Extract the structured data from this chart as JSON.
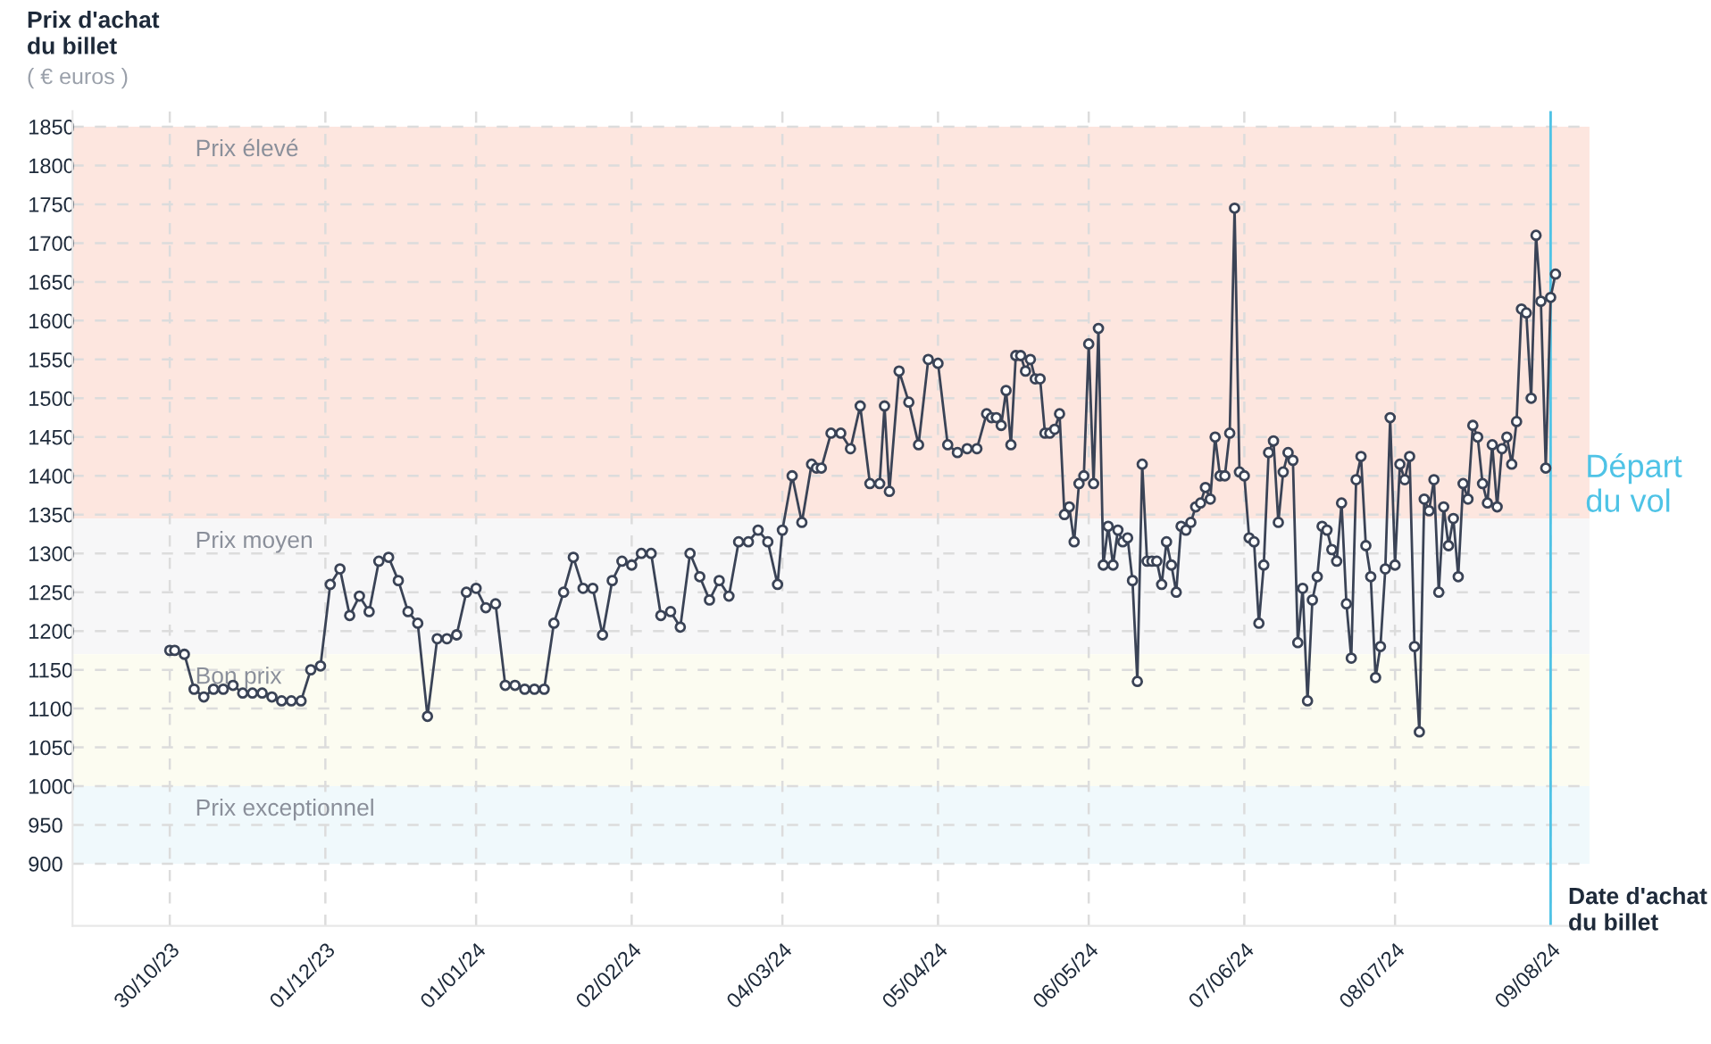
{
  "chart_data": {
    "type": "line",
    "ylabel": "Prix d'achat\ndu billet",
    "xlabel": "Date d'achat\ndu billet",
    "annotations": [
      "( € euros )"
    ],
    "x": [
      "2023-10-30",
      "2023-10-31",
      "2023-11-02",
      "2023-11-04",
      "2023-11-06",
      "2023-11-08",
      "2023-11-10",
      "2023-11-12",
      "2023-11-14",
      "2023-11-16",
      "2023-11-18",
      "2023-11-20",
      "2023-11-22",
      "2023-11-24",
      "2023-11-26",
      "2023-11-28",
      "2023-11-30",
      "2023-12-02",
      "2023-12-04",
      "2023-12-06",
      "2023-12-08",
      "2023-12-10",
      "2023-12-12",
      "2023-12-14",
      "2023-12-16",
      "2023-12-18",
      "2023-12-20",
      "2023-12-22",
      "2023-12-24",
      "2023-12-26",
      "2023-12-28",
      "2023-12-30",
      "2024-01-01",
      "2024-01-03",
      "2024-01-05",
      "2024-01-07",
      "2024-01-09",
      "2024-01-11",
      "2024-01-13",
      "2024-01-15",
      "2024-01-17",
      "2024-01-19",
      "2024-01-21",
      "2024-01-23",
      "2024-01-25",
      "2024-01-27",
      "2024-01-29",
      "2024-01-31",
      "2024-02-02",
      "2024-02-04",
      "2024-02-06",
      "2024-02-08",
      "2024-02-10",
      "2024-02-12",
      "2024-02-14",
      "2024-02-16",
      "2024-02-18",
      "2024-02-20",
      "2024-02-22",
      "2024-02-24",
      "2024-02-26",
      "2024-02-28",
      "2024-03-01",
      "2024-03-03",
      "2024-03-04",
      "2024-03-06",
      "2024-03-08",
      "2024-03-10",
      "2024-03-11",
      "2024-03-12",
      "2024-03-14",
      "2024-03-16",
      "2024-03-18",
      "2024-03-20",
      "2024-03-22",
      "2024-03-24",
      "2024-03-25",
      "2024-03-26",
      "2024-03-28",
      "2024-03-30",
      "2024-04-01",
      "2024-04-03",
      "2024-04-05",
      "2024-04-07",
      "2024-04-09",
      "2024-04-11",
      "2024-04-13",
      "2024-04-15",
      "2024-04-16",
      "2024-04-17",
      "2024-04-18",
      "2024-04-19",
      "2024-04-20",
      "2024-04-21",
      "2024-04-22",
      "2024-04-23",
      "2024-04-24",
      "2024-04-25",
      "2024-04-26",
      "2024-04-27",
      "2024-04-28",
      "2024-04-29",
      "2024-04-30",
      "2024-05-01",
      "2024-05-02",
      "2024-05-03",
      "2024-05-04",
      "2024-05-05",
      "2024-05-06",
      "2024-05-07",
      "2024-05-08",
      "2024-05-09",
      "2024-05-10",
      "2024-05-11",
      "2024-05-12",
      "2024-05-13",
      "2024-05-14",
      "2024-05-15",
      "2024-05-16",
      "2024-05-17",
      "2024-05-18",
      "2024-05-19",
      "2024-05-20",
      "2024-05-21",
      "2024-05-22",
      "2024-05-23",
      "2024-05-24",
      "2024-05-25",
      "2024-05-26",
      "2024-05-27",
      "2024-05-28",
      "2024-05-29",
      "2024-05-30",
      "2024-05-31",
      "2024-06-01",
      "2024-06-02",
      "2024-06-03",
      "2024-06-04",
      "2024-06-05",
      "2024-06-06",
      "2024-06-07",
      "2024-06-08",
      "2024-06-09",
      "2024-06-10",
      "2024-06-11",
      "2024-06-12",
      "2024-06-13",
      "2024-06-14",
      "2024-06-15",
      "2024-06-16",
      "2024-06-17",
      "2024-06-18",
      "2024-06-19",
      "2024-06-20",
      "2024-06-21",
      "2024-06-22",
      "2024-06-23",
      "2024-06-24",
      "2024-06-25",
      "2024-06-26",
      "2024-06-27",
      "2024-06-28",
      "2024-06-29",
      "2024-06-30",
      "2024-07-01",
      "2024-07-02",
      "2024-07-03",
      "2024-07-04",
      "2024-07-05",
      "2024-07-06",
      "2024-07-07",
      "2024-07-08",
      "2024-07-09",
      "2024-07-10",
      "2024-07-11",
      "2024-07-12",
      "2024-07-13",
      "2024-07-14",
      "2024-07-15",
      "2024-07-16",
      "2024-07-17",
      "2024-07-18",
      "2024-07-19",
      "2024-07-20",
      "2024-07-21",
      "2024-07-22",
      "2024-07-23",
      "2024-07-24",
      "2024-07-25",
      "2024-07-26",
      "2024-07-27",
      "2024-07-28",
      "2024-07-29",
      "2024-07-30",
      "2024-07-31",
      "2024-08-01",
      "2024-08-02",
      "2024-08-03",
      "2024-08-04",
      "2024-08-05",
      "2024-08-06",
      "2024-08-07",
      "2024-08-08",
      "2024-08-09",
      "2024-08-10"
    ],
    "series": [
      {
        "color": "#3a4356",
        "values": [
          1175,
          1175,
          1170,
          1125,
          1115,
          1125,
          1125,
          1130,
          1120,
          1120,
          1120,
          1115,
          1110,
          1110,
          1110,
          1150,
          1155,
          1260,
          1280,
          1220,
          1245,
          1225,
          1290,
          1295,
          1265,
          1225,
          1210,
          1090,
          1190,
          1190,
          1195,
          1250,
          1255,
          1230,
          1235,
          1130,
          1130,
          1125,
          1125,
          1125,
          1210,
          1250,
          1295,
          1255,
          1255,
          1195,
          1265,
          1290,
          1285,
          1300,
          1300,
          1220,
          1225,
          1205,
          1300,
          1270,
          1240,
          1265,
          1245,
          1315,
          1315,
          1330,
          1315,
          1260,
          1330,
          1400,
          1340,
          1415,
          1410,
          1410,
          1455,
          1455,
          1435,
          1490,
          1390,
          1390,
          1490,
          1380,
          1535,
          1495,
          1440,
          1550,
          1545,
          1440,
          1430,
          1435,
          1435,
          1480,
          1475,
          1475,
          1465,
          1510,
          1440,
          1555,
          1555,
          1535,
          1550,
          1525,
          1525,
          1455,
          1455,
          1460,
          1480,
          1350,
          1360,
          1315,
          1390,
          1400,
          1570,
          1390,
          1590,
          1285,
          1335,
          1285,
          1330,
          1315,
          1320,
          1265,
          1135,
          1415,
          1290,
          1290,
          1290,
          1260,
          1315,
          1285,
          1250,
          1335,
          1330,
          1340,
          1360,
          1365,
          1385,
          1370,
          1450,
          1400,
          1400,
          1455,
          1745,
          1405,
          1400,
          1320,
          1315,
          1210,
          1285,
          1430,
          1445,
          1340,
          1405,
          1430,
          1420,
          1185,
          1255,
          1110,
          1240,
          1270,
          1335,
          1330,
          1305,
          1290,
          1365,
          1235,
          1165,
          1395,
          1425,
          1310,
          1270,
          1140,
          1180,
          1280,
          1475,
          1285,
          1415,
          1395,
          1425,
          1180,
          1070,
          1370,
          1355,
          1395,
          1250,
          1360,
          1310,
          1345,
          1270,
          1390,
          1370,
          1465,
          1450,
          1390,
          1365,
          1440,
          1360,
          1435,
          1450,
          1415,
          1470,
          1615,
          1610,
          1500,
          1710,
          1625,
          1410,
          1630,
          1660
        ]
      }
    ],
    "xlim": [
      "2023-10-10",
      "2024-08-17"
    ],
    "ylim": [
      820,
      1870
    ],
    "xticks": [
      {
        "value": "2023-10-30",
        "label": "30/10/23"
      },
      {
        "value": "2023-12-01",
        "label": "01/12/23"
      },
      {
        "value": "2024-01-01",
        "label": "01/01/24"
      },
      {
        "value": "2024-02-02",
        "label": "02/02/24"
      },
      {
        "value": "2024-03-04",
        "label": "04/03/24"
      },
      {
        "value": "2024-04-05",
        "label": "05/04/24"
      },
      {
        "value": "2024-05-06",
        "label": "06/05/24"
      },
      {
        "value": "2024-06-07",
        "label": "07/06/24"
      },
      {
        "value": "2024-07-08",
        "label": "08/07/24"
      },
      {
        "value": "2024-08-09",
        "label": "09/08/24"
      }
    ],
    "yticks": [
      900,
      950,
      1000,
      1050,
      1100,
      1150,
      1200,
      1250,
      1300,
      1350,
      1400,
      1450,
      1500,
      1550,
      1600,
      1650,
      1700,
      1750,
      1800,
      1850
    ],
    "bands": [
      {
        "axis": "y",
        "from": 1345,
        "to": 1850,
        "label": "Prix élevé",
        "color": "#fde6df"
      },
      {
        "axis": "y",
        "from": 1170,
        "to": 1345,
        "label": "Prix moyen",
        "color": "#f7f7f8"
      },
      {
        "axis": "y",
        "from": 1000,
        "to": 1170,
        "label": "Bon prix",
        "color": "#fcfcf1"
      },
      {
        "axis": "y",
        "from": 900,
        "to": 1000,
        "label": "Prix exceptionnel",
        "color": "#f0f9fc"
      }
    ],
    "ref_lines": [
      {
        "axis": "x",
        "value": "2024-08-09",
        "label": "Départ\ndu vol",
        "color": "#4ec3e6",
        "line_style": "solid"
      }
    ],
    "grid": true,
    "marker": "circle",
    "line_style": "solid"
  }
}
